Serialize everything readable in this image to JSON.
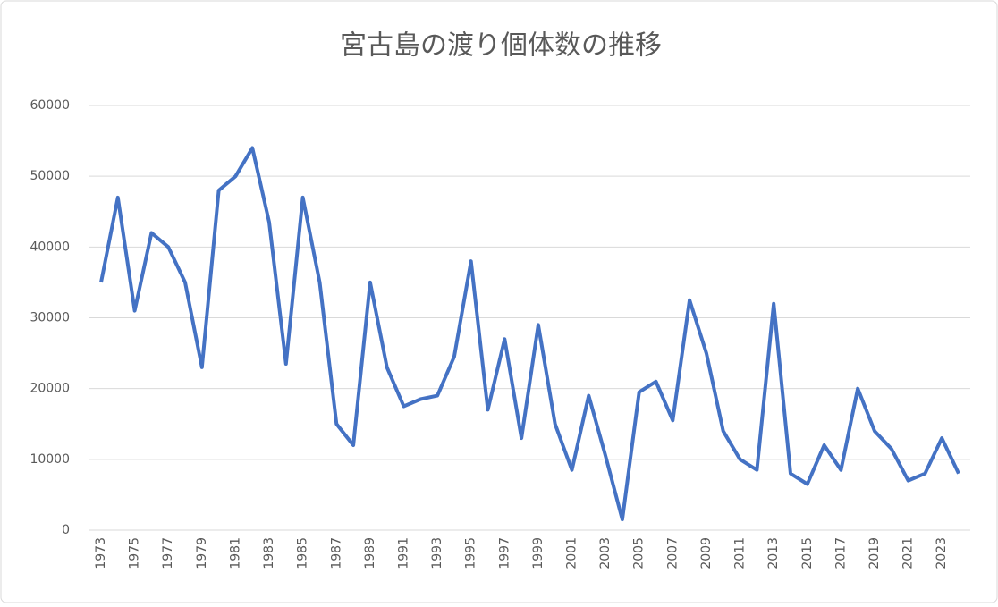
{
  "chart_data": {
    "type": "line",
    "title": "宮古島の渡り個体数の推移",
    "categories": [
      "1973",
      null,
      "1975",
      null,
      "1977",
      null,
      "1979",
      null,
      "1981",
      null,
      "1983",
      null,
      "1985",
      null,
      "1987",
      null,
      "1989",
      null,
      "1991",
      null,
      "1993",
      null,
      "1995",
      null,
      "1997",
      null,
      "1999",
      null,
      "2001",
      null,
      "2003",
      null,
      "2005",
      null,
      "2007",
      null,
      "2009",
      null,
      "2011",
      null,
      "2013",
      null,
      "2015",
      null,
      "2017",
      null,
      "2019",
      null,
      "2021",
      null,
      "2023",
      null
    ],
    "values": [
      35000,
      47000,
      31000,
      42000,
      40000,
      35000,
      23000,
      48000,
      50000,
      54000,
      43500,
      23500,
      47000,
      35000,
      15000,
      12000,
      35000,
      23000,
      17500,
      18500,
      19000,
      24500,
      38000,
      17000,
      27000,
      13000,
      29000,
      15000,
      8500,
      19000,
      10500,
      1500,
      19500,
      21000,
      15500,
      32500,
      25000,
      14000,
      10000,
      8500,
      32000,
      8000,
      6500,
      12000,
      8500,
      20000,
      14000,
      11500,
      7000,
      8000,
      13000,
      8000
    ],
    "color": "#4472c4",
    "ylim": [
      0,
      60000
    ],
    "yticks": [
      0,
      10000,
      20000,
      30000,
      40000,
      50000,
      60000
    ],
    "grid": true
  }
}
